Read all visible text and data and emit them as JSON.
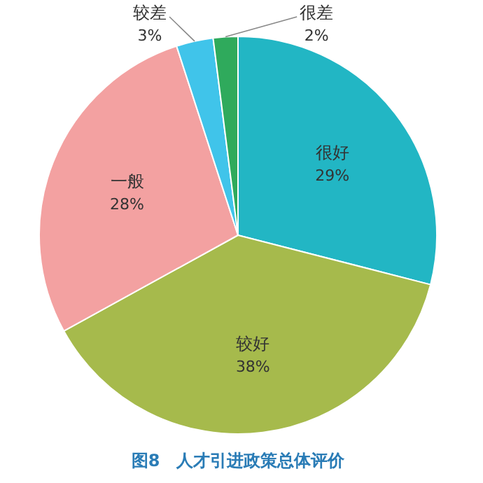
{
  "chart_data": {
    "type": "pie",
    "title": "图8　人才引进政策总体评价",
    "categories": [
      "很好",
      "较好",
      "一般",
      "较差",
      "很差"
    ],
    "values": [
      29,
      38,
      28,
      3,
      2
    ],
    "colors": [
      "#22b6c4",
      "#a6ba4c",
      "#f3a1a1",
      "#40c4ea",
      "#2faa5c"
    ],
    "value_labels": [
      "29%",
      "38%",
      "28%",
      "3%",
      "2%"
    ],
    "legend": false
  }
}
